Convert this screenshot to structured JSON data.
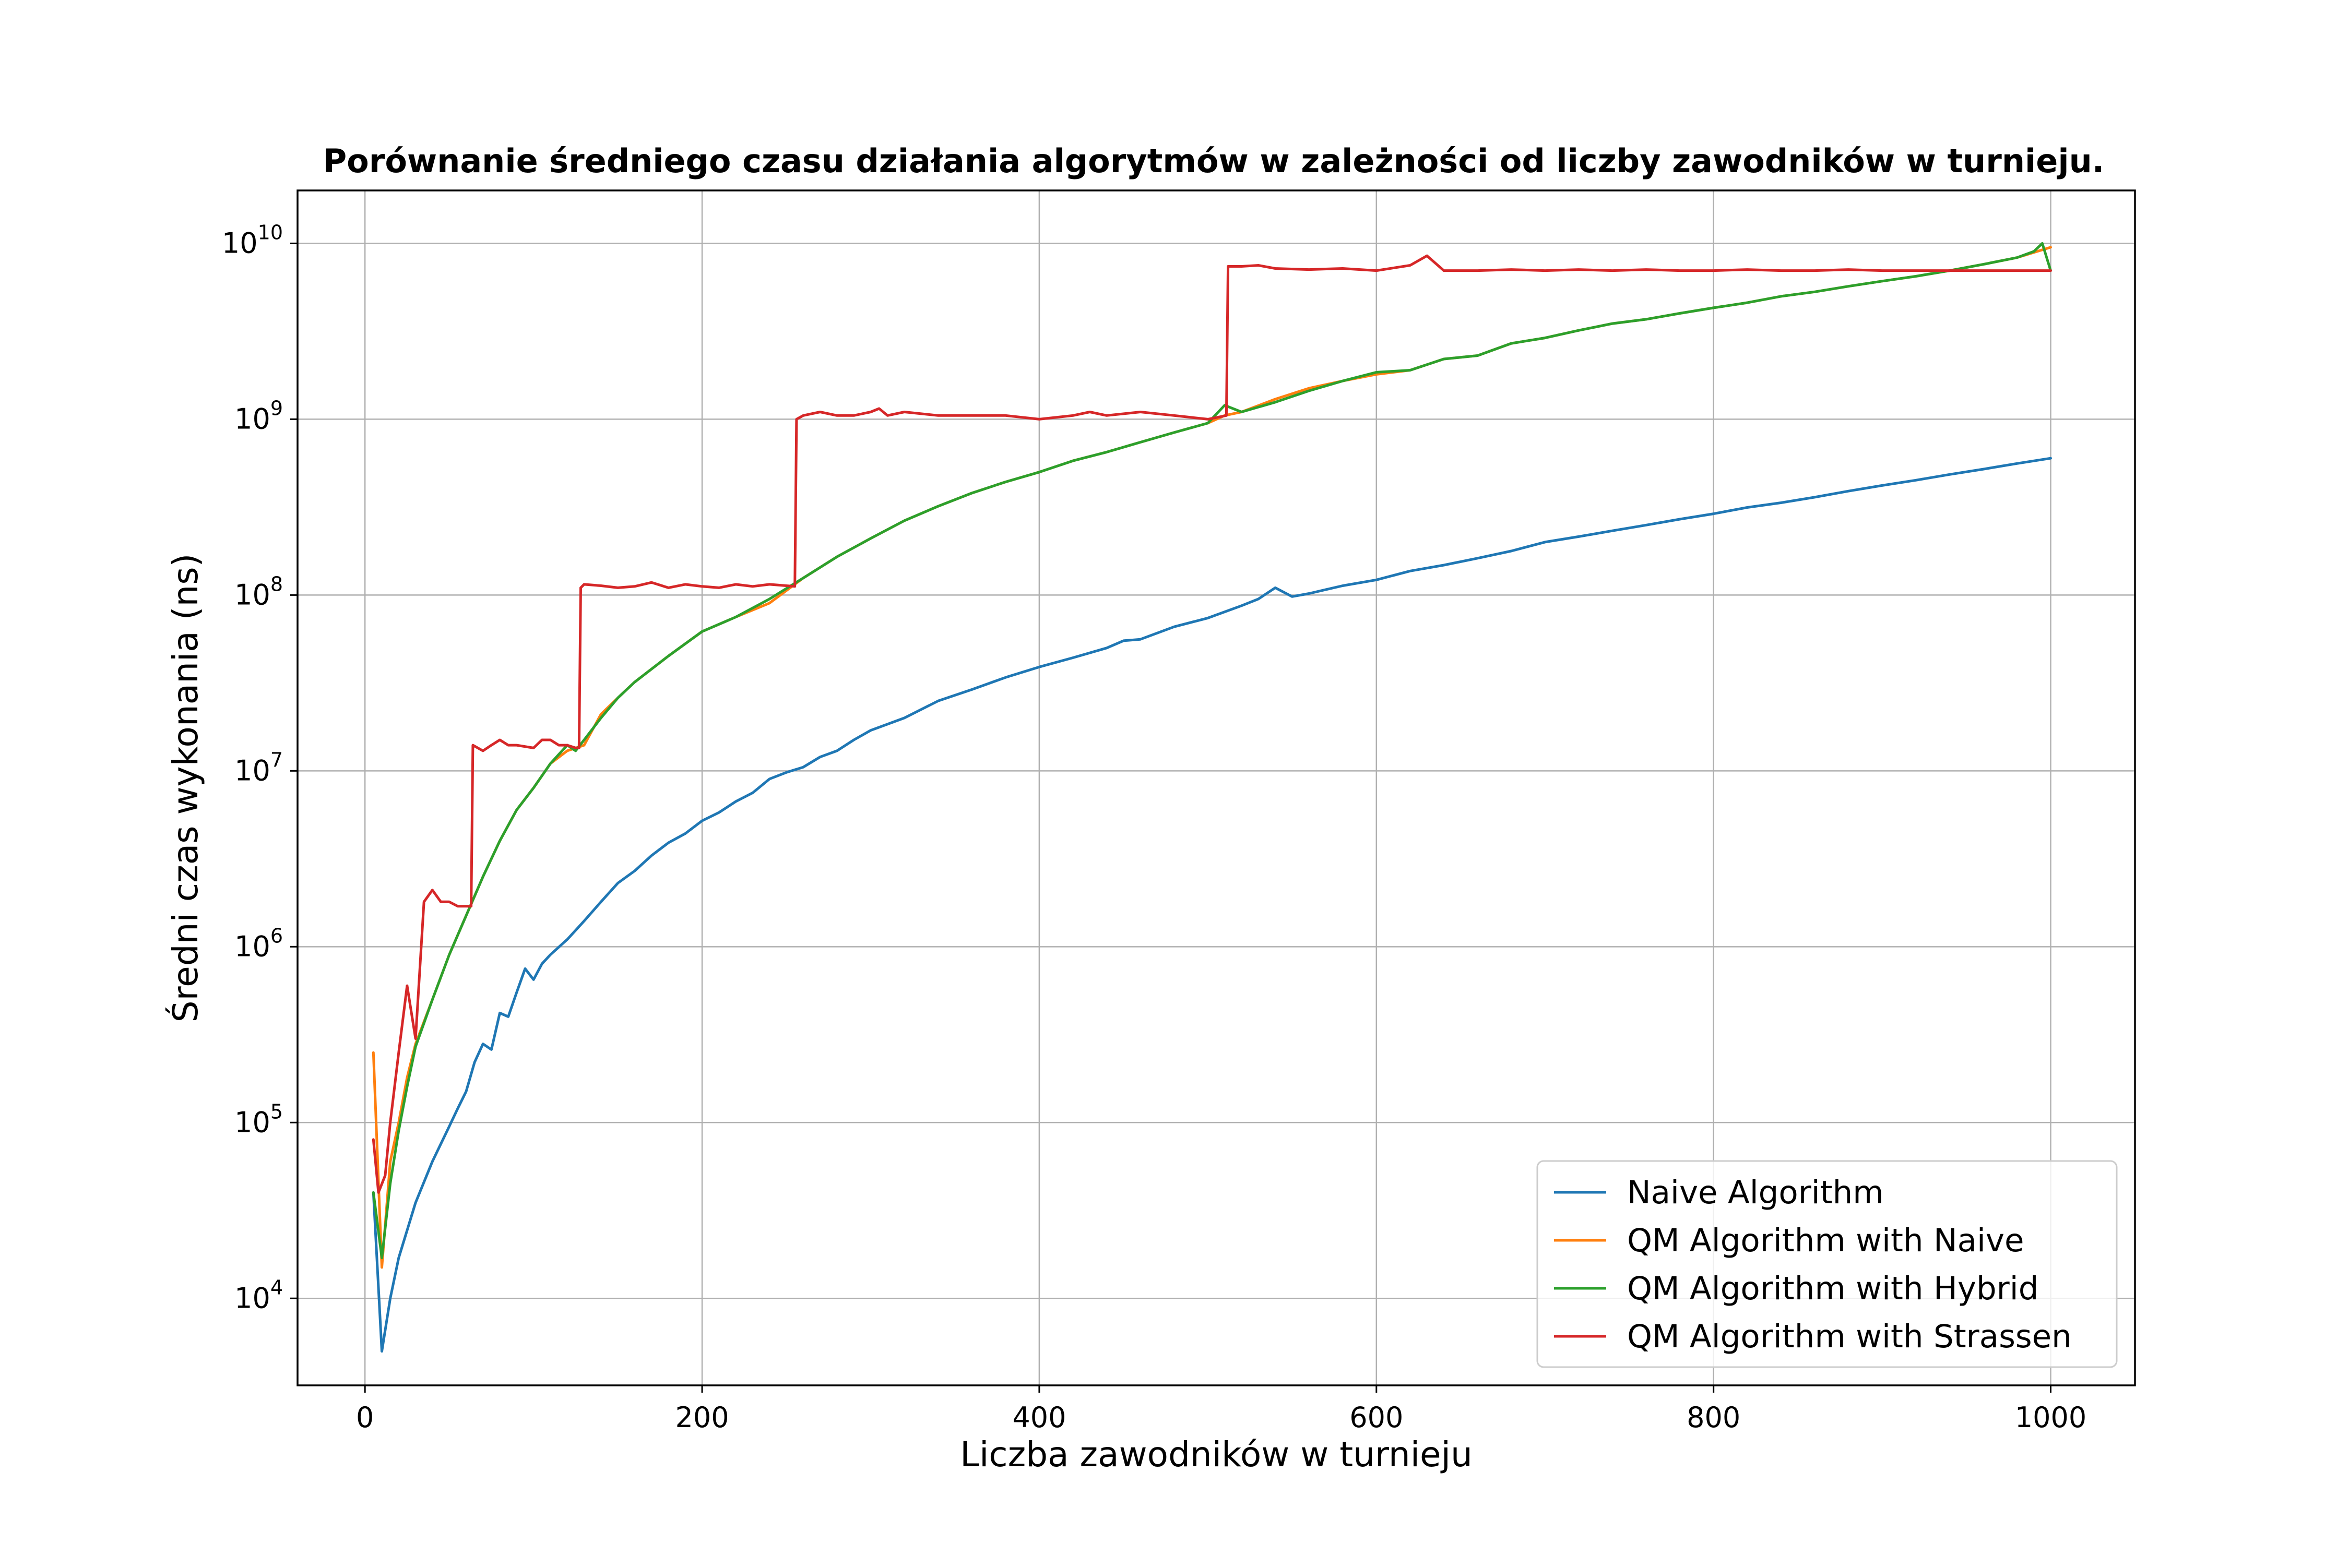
{
  "chart_data": {
    "type": "line",
    "title": "Porównanie średniego czasu działania algorytmów w zależności od liczby zawodników w turnieju.",
    "xlabel": "Liczba zawodników w turnieju",
    "ylabel": "Średni czas wykonania (ns)",
    "xlim": [
      -40,
      1050
    ],
    "ylim": [
      3200,
      20000000000
    ],
    "yscale": "log",
    "grid": true,
    "legend_position": "lower-right",
    "x_ticks": [
      0,
      200,
      400,
      600,
      800,
      1000
    ],
    "x_tick_labels": [
      "0",
      "200",
      "400",
      "600",
      "800",
      "1000"
    ],
    "y_ticks": [
      10000,
      100000,
      1000000,
      10000000,
      100000000,
      1000000000,
      10000000000
    ],
    "y_tick_labels": [
      {
        "base": "10",
        "exp": "4"
      },
      {
        "base": "10",
        "exp": "5"
      },
      {
        "base": "10",
        "exp": "6"
      },
      {
        "base": "10",
        "exp": "7"
      },
      {
        "base": "10",
        "exp": "8"
      },
      {
        "base": "10",
        "exp": "9"
      },
      {
        "base": "10",
        "exp": "10"
      }
    ],
    "series": [
      {
        "name": "Naive Algorithm",
        "color": "#1f77b4",
        "x": [
          5,
          10,
          15,
          20,
          30,
          40,
          50,
          55,
          60,
          65,
          70,
          75,
          80,
          85,
          90,
          95,
          100,
          105,
          110,
          120,
          130,
          140,
          150,
          160,
          170,
          180,
          190,
          200,
          210,
          220,
          230,
          240,
          250,
          260,
          270,
          280,
          290,
          300,
          320,
          340,
          360,
          380,
          400,
          420,
          440,
          450,
          460,
          480,
          500,
          520,
          530,
          540,
          550,
          560,
          580,
          600,
          620,
          640,
          660,
          680,
          700,
          720,
          740,
          760,
          780,
          800,
          820,
          840,
          860,
          880,
          900,
          920,
          940,
          960,
          980,
          1000
        ],
        "y": [
          40000,
          5000,
          10000,
          17000,
          35000,
          60000,
          95000,
          120000,
          150000,
          220000,
          280000,
          260000,
          420000,
          400000,
          550000,
          750000,
          650000,
          800000,
          900000,
          1100000,
          1400000,
          1800000,
          2300000,
          2700000,
          3300000,
          3900000,
          4400000,
          5200000,
          5800000,
          6700000,
          7500000,
          9000000,
          9800000,
          10500000,
          12000000,
          13000000,
          15000000,
          17000000,
          20000000,
          25000000,
          29000000,
          34000000,
          39000000,
          44000000,
          50000000,
          55000000,
          56000000,
          66000000,
          74000000,
          87000000,
          95000000,
          110000000,
          98000000,
          102000000,
          113000000,
          122000000,
          137000000,
          148000000,
          162000000,
          178000000,
          200000000,
          215000000,
          232000000,
          250000000,
          270000000,
          290000000,
          315000000,
          335000000,
          360000000,
          390000000,
          420000000,
          450000000,
          485000000,
          520000000,
          560000000,
          600000000
        ]
      },
      {
        "name": "QM Algorithm with Naive",
        "color": "#ff7f0e",
        "x": [
          5,
          10,
          15,
          20,
          25,
          30,
          40,
          50,
          60,
          70,
          80,
          90,
          100,
          110,
          120,
          130,
          140,
          150,
          160,
          180,
          200,
          220,
          240,
          260,
          280,
          300,
          320,
          340,
          360,
          380,
          400,
          420,
          440,
          460,
          480,
          500,
          510,
          520,
          540,
          560,
          580,
          600,
          620,
          640,
          660,
          680,
          700,
          720,
          740,
          760,
          780,
          800,
          820,
          840,
          860,
          880,
          900,
          920,
          940,
          960,
          980,
          1000
        ],
        "y": [
          250000,
          15000,
          60000,
          100000,
          180000,
          280000,
          500000,
          900000,
          1500000,
          2500000,
          4000000,
          6000000,
          8000000,
          11000000,
          13000000,
          14000000,
          21000000,
          26000000,
          32000000,
          45000000,
          62000000,
          75000000,
          90000000,
          125000000,
          165000000,
          210000000,
          265000000,
          320000000,
          380000000,
          440000000,
          500000000,
          580000000,
          650000000,
          740000000,
          840000000,
          950000000,
          1050000000,
          1100000000,
          1300000000,
          1500000000,
          1650000000,
          1800000000,
          1900000000,
          2200000000,
          2300000000,
          2700000000,
          2900000000,
          3200000000,
          3500000000,
          3700000000,
          4000000000,
          4300000000,
          4600000000,
          5000000000,
          5300000000,
          5700000000,
          6100000000,
          6500000000,
          7000000000,
          7600000000,
          8300000000,
          9500000000
        ]
      },
      {
        "name": "QM Algorithm with Hybrid",
        "color": "#2ca02c",
        "x": [
          5,
          10,
          15,
          20,
          25,
          30,
          40,
          50,
          60,
          70,
          80,
          90,
          100,
          110,
          120,
          125,
          130,
          140,
          150,
          160,
          180,
          200,
          220,
          240,
          260,
          280,
          300,
          320,
          340,
          360,
          380,
          400,
          420,
          440,
          460,
          480,
          500,
          510,
          520,
          540,
          560,
          580,
          600,
          620,
          640,
          660,
          680,
          700,
          720,
          740,
          760,
          780,
          800,
          820,
          840,
          860,
          880,
          900,
          920,
          940,
          960,
          980,
          990,
          995,
          1000
        ],
        "y": [
          40000,
          17000,
          45000,
          90000,
          160000,
          270000,
          500000,
          900000,
          1500000,
          2500000,
          4000000,
          6000000,
          8000000,
          11000000,
          14000000,
          13000000,
          15000000,
          20000000,
          26000000,
          32000000,
          45000000,
          62000000,
          75000000,
          95000000,
          125000000,
          165000000,
          210000000,
          265000000,
          320000000,
          380000000,
          440000000,
          500000000,
          580000000,
          650000000,
          740000000,
          840000000,
          950000000,
          1200000000,
          1100000000,
          1250000000,
          1450000000,
          1650000000,
          1850000000,
          1900000000,
          2200000000,
          2300000000,
          2700000000,
          2900000000,
          3200000000,
          3500000000,
          3700000000,
          4000000000,
          4300000000,
          4600000000,
          5000000000,
          5300000000,
          5700000000,
          6100000000,
          6500000000,
          7000000000,
          7600000000,
          8300000000,
          9000000000,
          10000000000,
          7000000000
        ]
      },
      {
        "name": "QM Algorithm with Strassen",
        "color": "#d62728",
        "x": [
          5,
          8,
          12,
          15,
          20,
          25,
          30,
          35,
          40,
          45,
          50,
          55,
          60,
          63,
          64,
          70,
          75,
          80,
          85,
          90,
          100,
          105,
          110,
          115,
          120,
          125,
          127,
          128,
          130,
          140,
          150,
          160,
          170,
          180,
          190,
          200,
          210,
          220,
          230,
          240,
          250,
          255,
          256,
          260,
          270,
          280,
          290,
          300,
          305,
          310,
          320,
          340,
          360,
          380,
          400,
          420,
          430,
          440,
          460,
          480,
          500,
          511,
          512,
          520,
          530,
          540,
          560,
          580,
          600,
          620,
          630,
          640,
          660,
          680,
          700,
          720,
          740,
          760,
          780,
          800,
          820,
          840,
          860,
          880,
          900,
          920,
          940,
          960,
          980,
          1000
        ],
        "y": [
          80000,
          40000,
          50000,
          100000,
          250000,
          600000,
          300000,
          1800000,
          2100000,
          1800000,
          1800000,
          1700000,
          1700000,
          1700000,
          14000000,
          13000000,
          14000000,
          15000000,
          14000000,
          14000000,
          13500000,
          15000000,
          15000000,
          14000000,
          14000000,
          13500000,
          13500000,
          110000000,
          115000000,
          113000000,
          110000000,
          112000000,
          118000000,
          110000000,
          115000000,
          112000000,
          110000000,
          115000000,
          112000000,
          115000000,
          113000000,
          112000000,
          1000000000,
          1050000000,
          1100000000,
          1050000000,
          1050000000,
          1100000000,
          1150000000,
          1050000000,
          1100000000,
          1050000000,
          1050000000,
          1050000000,
          1000000000,
          1050000000,
          1100000000,
          1050000000,
          1100000000,
          1050000000,
          1000000000,
          1050000000,
          7400000000,
          7400000000,
          7500000000,
          7200000000,
          7100000000,
          7200000000,
          7000000000,
          7500000000,
          8500000000,
          7000000000,
          7000000000,
          7100000000,
          7000000000,
          7100000000,
          7000000000,
          7100000000,
          7000000000,
          7000000000,
          7100000000,
          7000000000,
          7000000000,
          7100000000,
          7000000000,
          7000000000,
          7000000000,
          7000000000,
          7000000000,
          7000000000
        ]
      }
    ]
  }
}
